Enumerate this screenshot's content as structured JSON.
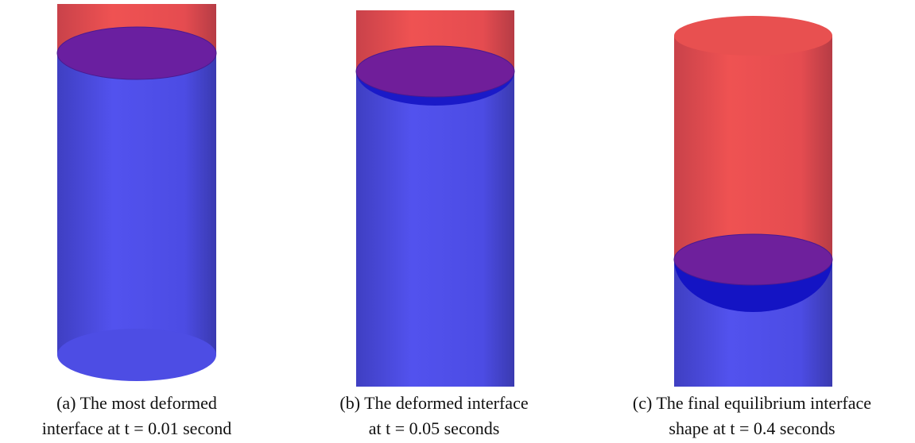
{
  "figures": [
    {
      "caption_lines": [
        "(a) The most deformed",
        "interface at t = 0.01 second"
      ]
    },
    {
      "caption_lines": [
        "(b) The deformed interface",
        "at t = 0.05 seconds"
      ]
    },
    {
      "caption_lines": [
        "(c) The final equilibrium interface",
        "shape at t = 0.4 seconds"
      ]
    }
  ]
}
